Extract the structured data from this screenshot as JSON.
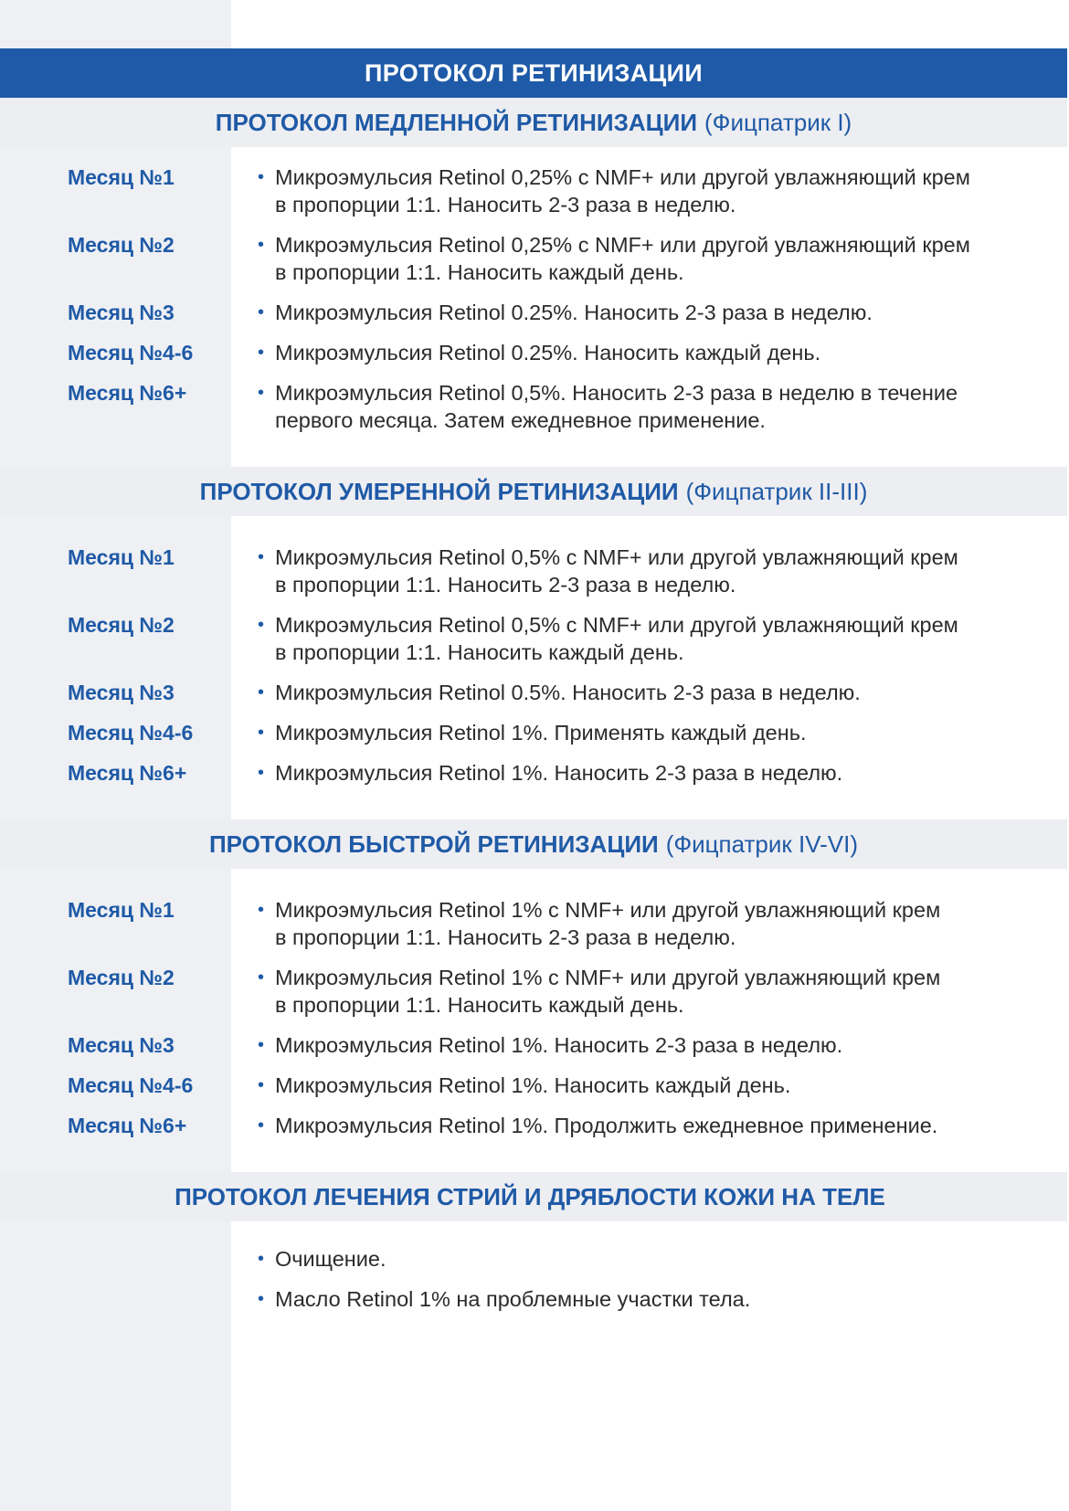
{
  "title": "ПРОТОКОЛ РЕТИНИЗАЦИИ",
  "sections": [
    {
      "heading": "ПРОТОКОЛ МЕДЛЕННОЙ РЕТИНИЗАЦИИ",
      "subheading": "(Фицпатрик I)",
      "rows": [
        {
          "label": "Месяц №1",
          "lines": [
            "Микроэмульсия Retinol 0,25% с NMF+ или другой увлажняющий крем",
            "в пропорции 1:1. Наносить 2-3 раза в неделю."
          ]
        },
        {
          "label": "Месяц №2",
          "lines": [
            "Микроэмульсия Retinol 0,25% с NMF+ или другой увлажняющий крем",
            "в пропорции 1:1. Наносить каждый день."
          ]
        },
        {
          "label": "Месяц №3",
          "lines": [
            "Микроэмульсия Retinol 0.25%. Наносить 2-3 раза в неделю."
          ]
        },
        {
          "label": "Месяц №4-6",
          "lines": [
            "Микроэмульсия Retinol 0.25%. Наносить каждый день."
          ]
        },
        {
          "label": "Месяц №6+",
          "lines": [
            "Микроэмульсия Retinol 0,5%. Наносить 2-3 раза в неделю в течение",
            "первого месяца. Затем ежедневное применение."
          ]
        }
      ]
    },
    {
      "heading": "ПРОТОКОЛ УМЕРЕННОЙ РЕТИНИЗАЦИИ",
      "subheading": "(Фицпатрик II-III)",
      "rows": [
        {
          "label": "Месяц №1",
          "lines": [
            "Микроэмульсия Retinol 0,5% с NMF+ или другой увлажняющий крем",
            "в пропорции 1:1. Наносить 2-3 раза в неделю."
          ]
        },
        {
          "label": "Месяц №2",
          "lines": [
            "Микроэмульсия Retinol 0,5% с NMF+ или другой увлажняющий крем",
            "в пропорции 1:1. Наносить каждый день."
          ]
        },
        {
          "label": "Месяц №3",
          "lines": [
            "Микроэмульсия Retinol 0.5%. Наносить 2-3 раза в неделю."
          ]
        },
        {
          "label": "Месяц №4-6",
          "lines": [
            "Микроэмульсия Retinol 1%. Применять каждый день."
          ]
        },
        {
          "label": "Месяц №6+",
          "lines": [
            "Микроэмульсия Retinol 1%. Наносить 2-3 раза в неделю."
          ]
        }
      ]
    },
    {
      "heading": "ПРОТОКОЛ БЫСТРОЙ РЕТИНИЗАЦИИ",
      "subheading": "(Фицпатрик IV-VI)",
      "rows": [
        {
          "label": "Месяц №1",
          "lines": [
            "Микроэмульсия Retinol 1% с NMF+ или другой увлажняющий крем",
            "в пропорции 1:1. Наносить 2-3 раза в неделю."
          ]
        },
        {
          "label": "Месяц №2",
          "lines": [
            "Микроэмульсия Retinol 1% с NMF+ или другой увлажняющий крем",
            "в пропорции 1:1. Наносить каждый день."
          ]
        },
        {
          "label": "Месяц №3",
          "lines": [
            "Микроэмульсия Retinol 1%. Наносить 2-3 раза в неделю."
          ]
        },
        {
          "label": "Месяц №4-6",
          "lines": [
            "Микроэмульсия Retinol 1%. Наносить каждый день."
          ]
        },
        {
          "label": "Месяц №6+",
          "lines": [
            "Микроэмульсия Retinol 1%. Продолжить ежедневное применение."
          ]
        }
      ]
    },
    {
      "heading": "ПРОТОКОЛ ЛЕЧЕНИЯ СТРИЙ И ДРЯБЛОСТИ КОЖИ НА ТЕЛЕ",
      "rows": [
        {
          "lines": [
            "Очищение."
          ]
        },
        {
          "lines": [
            "Масло Retinol 1% на проблемные участки тела."
          ]
        }
      ]
    }
  ]
}
